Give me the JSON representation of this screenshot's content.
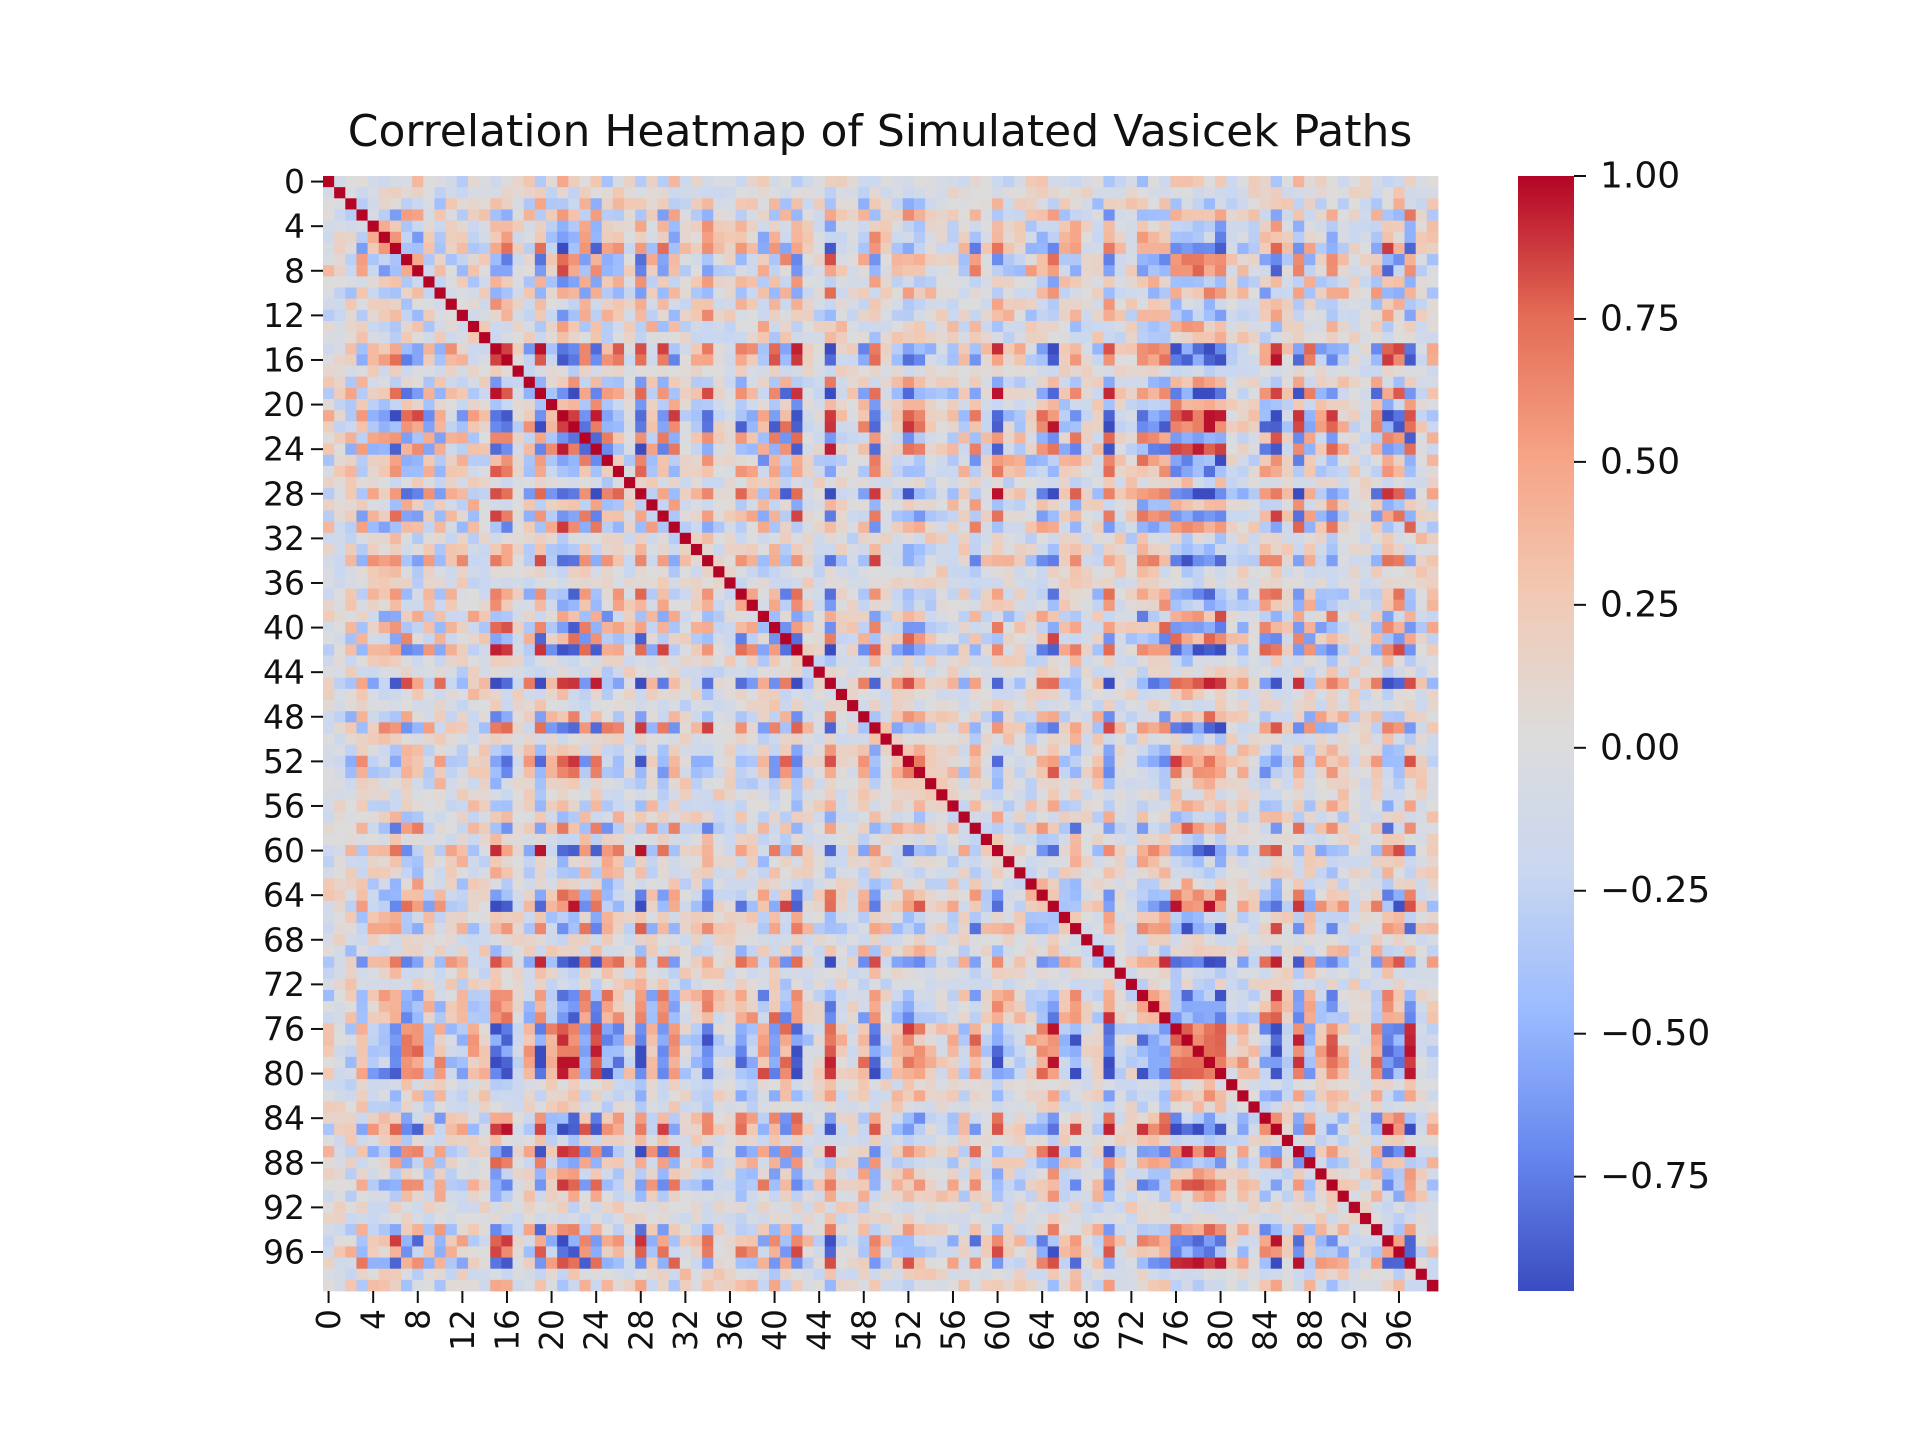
{
  "chart_data": {
    "type": "heatmap",
    "title": "Correlation Heatmap of Simulated Vasicek Paths",
    "xlabel": "",
    "ylabel": "",
    "n": 100,
    "tick_labels": [
      "0",
      "4",
      "8",
      "12",
      "16",
      "20",
      "24",
      "28",
      "32",
      "36",
      "40",
      "44",
      "48",
      "52",
      "56",
      "60",
      "64",
      "68",
      "72",
      "76",
      "80",
      "84",
      "88",
      "92",
      "96"
    ],
    "tick_indices": [
      0,
      4,
      8,
      12,
      16,
      20,
      24,
      28,
      32,
      36,
      40,
      44,
      48,
      52,
      56,
      60,
      64,
      68,
      72,
      76,
      80,
      84,
      88,
      92,
      96
    ],
    "colorbar": {
      "min": -0.95,
      "max": 1.0,
      "tick_values": [
        1.0,
        0.75,
        0.5,
        0.25,
        0.0,
        -0.25,
        -0.5,
        -0.75
      ],
      "tick_labels": [
        "1.00",
        "0.75",
        "0.50",
        "0.25",
        "0.00",
        "−0.25",
        "−0.50",
        "−0.75"
      ]
    },
    "colormap": "coolwarm",
    "colormap_stops": [
      "#3b4cc0",
      "#6788ee",
      "#9abbff",
      "#c9d7f0",
      "#dddcdc",
      "#f2c9b4",
      "#f6a385",
      "#e36c55",
      "#b40426"
    ],
    "diagonal_value": 1.0,
    "matrix_note": "100 x 100 symmetric correlation matrix (individual off-diagonal values not legible)"
  }
}
